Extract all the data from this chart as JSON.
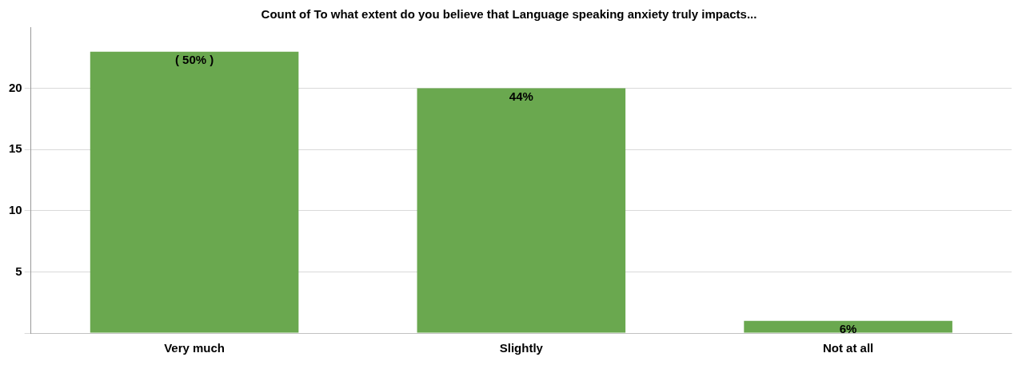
{
  "chart_data": {
    "type": "bar",
    "title": "Count of To what extent do you believe that Language speaking anxiety truly impacts...",
    "categories": [
      "Very much",
      "Slightly",
      "Not at all"
    ],
    "values": [
      23,
      20,
      1
    ],
    "color": "#6aa84f",
    "annotations": [
      {
        "text": "( 50% )",
        "x": "Very much",
        "y": 23
      },
      {
        "text": "44%",
        "x": "Slightly",
        "y": 20
      },
      {
        "text": "6%",
        "x": "Not at all",
        "y": 1
      }
    ],
    "ylim": [
      0,
      25
    ],
    "yticks": [
      {
        "value": 0,
        "label": null
      },
      5,
      10,
      15,
      20
    ],
    "grid": "y",
    "legend": false
  }
}
